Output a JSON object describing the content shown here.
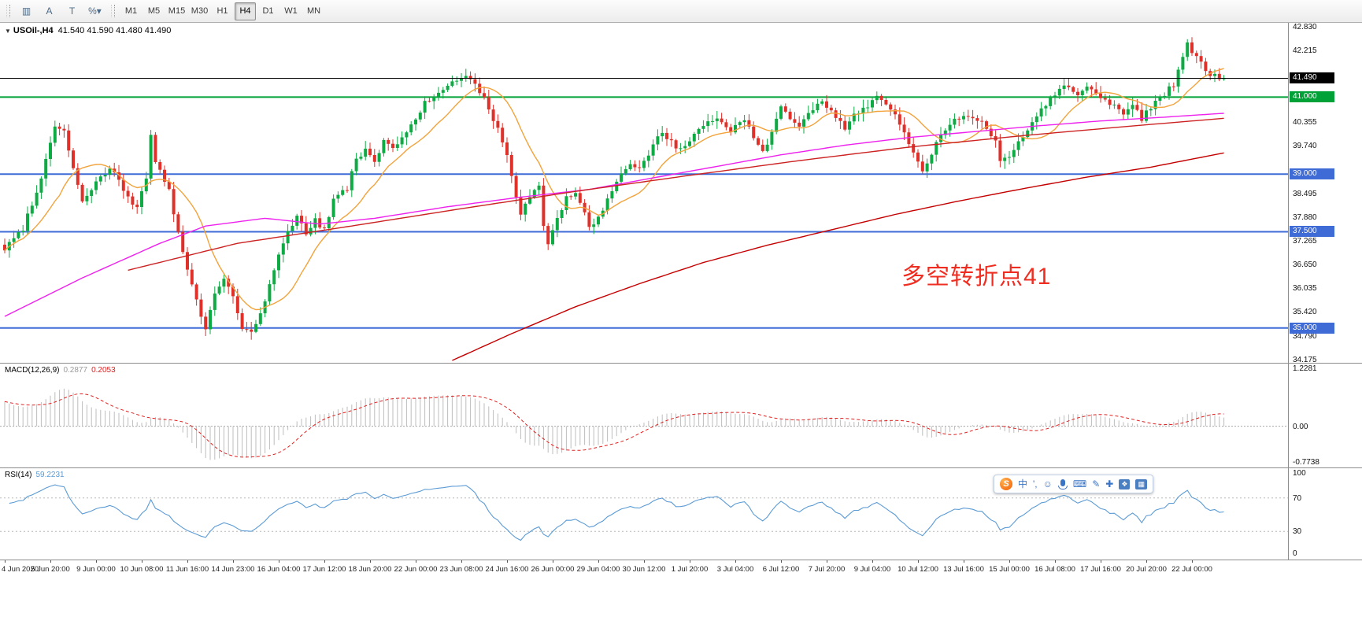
{
  "toolbar": {
    "tools": [
      {
        "name": "chart-style-icon",
        "glyph": "▥"
      },
      {
        "name": "text-label-tool",
        "glyph": "A"
      },
      {
        "name": "template-tool",
        "glyph": "T"
      },
      {
        "name": "scale-dropdown",
        "glyph": "%▾"
      }
    ],
    "timeframes": [
      "M1",
      "M5",
      "M15",
      "M30",
      "H1",
      "H4",
      "D1",
      "W1",
      "MN"
    ],
    "active_timeframe": "H4"
  },
  "chart": {
    "ohlc_label": {
      "collapse_arrow": "▼",
      "symbol": "USOil-,H4",
      "values": "41.540 41.590 41.480 41.490"
    },
    "annotation": {
      "text": "多空转折点41",
      "color": "#ef2d20"
    },
    "price_axis": {
      "max": 42.83,
      "min": 34.175,
      "ticks": [
        "42.830",
        "42.215",
        "40.355",
        "39.740",
        "38.495",
        "37.880",
        "37.265",
        "36.650",
        "36.035",
        "35.420",
        "34.790",
        "34.175"
      ]
    },
    "hlines": [
      {
        "price": 41.49,
        "color": "#000000",
        "width": 1,
        "label": "41.490"
      },
      {
        "price": 41.0,
        "color": "#00a136",
        "width": 2,
        "label": "41.000"
      },
      {
        "price": 39.0,
        "color": "#3f6bd7",
        "width": 2,
        "label": "39.000"
      },
      {
        "price": 37.5,
        "color": "#3f6bd7",
        "width": 2,
        "label": "37.500"
      },
      {
        "price": 35.0,
        "color": "#3f6bd7",
        "width": 2,
        "label": "35.000"
      }
    ]
  },
  "chart_data": {
    "type": "candlestick",
    "symbol": "USOil",
    "period": "H4",
    "bars": 268,
    "last_price": 41.49,
    "colors": {
      "up": "#0eaa44",
      "down": "#e0302a"
    },
    "close_keyframes": [
      [
        0,
        37.05
      ],
      [
        4,
        37.6
      ],
      [
        8,
        38.9
      ],
      [
        11,
        40.3
      ],
      [
        13,
        40.1
      ],
      [
        15,
        39.2
      ],
      [
        17,
        38.25
      ],
      [
        20,
        38.8
      ],
      [
        23,
        39.1
      ],
      [
        25,
        38.85
      ],
      [
        27,
        38.35
      ],
      [
        29,
        38.15
      ],
      [
        31,
        38.9
      ],
      [
        32,
        40.05
      ],
      [
        33,
        39.35
      ],
      [
        36,
        38.55
      ],
      [
        38,
        37.45
      ],
      [
        40,
        36.5
      ],
      [
        42,
        35.7
      ],
      [
        44,
        34.95
      ],
      [
        46,
        35.9
      ],
      [
        48,
        36.35
      ],
      [
        50,
        35.75
      ],
      [
        52,
        35.0
      ],
      [
        54,
        34.85
      ],
      [
        56,
        35.35
      ],
      [
        58,
        36.1
      ],
      [
        61,
        37.25
      ],
      [
        64,
        37.95
      ],
      [
        66,
        37.45
      ],
      [
        68,
        37.8
      ],
      [
        70,
        37.55
      ],
      [
        72,
        38.35
      ],
      [
        75,
        38.65
      ],
      [
        77,
        39.35
      ],
      [
        79,
        39.65
      ],
      [
        81,
        39.25
      ],
      [
        83,
        39.95
      ],
      [
        85,
        39.65
      ],
      [
        87,
        39.9
      ],
      [
        89,
        40.3
      ],
      [
        92,
        40.85
      ],
      [
        95,
        41.05
      ],
      [
        98,
        41.35
      ],
      [
        100,
        41.55
      ],
      [
        102,
        41.45
      ],
      [
        104,
        41.15
      ],
      [
        106,
        40.7
      ],
      [
        108,
        40.2
      ],
      [
        110,
        39.5
      ],
      [
        112,
        38.45
      ],
      [
        113,
        37.95
      ],
      [
        115,
        38.45
      ],
      [
        117,
        38.7
      ],
      [
        118,
        37.6
      ],
      [
        119,
        37.15
      ],
      [
        121,
        37.9
      ],
      [
        123,
        38.35
      ],
      [
        125,
        38.5
      ],
      [
        127,
        37.95
      ],
      [
        128,
        37.6
      ],
      [
        130,
        37.85
      ],
      [
        132,
        38.3
      ],
      [
        135,
        38.95
      ],
      [
        137,
        39.3
      ],
      [
        139,
        39.1
      ],
      [
        142,
        39.75
      ],
      [
        144,
        40.1
      ],
      [
        146,
        39.85
      ],
      [
        148,
        39.6
      ],
      [
        151,
        40.0
      ],
      [
        154,
        40.3
      ],
      [
        156,
        40.5
      ],
      [
        159,
        40.15
      ],
      [
        162,
        40.45
      ],
      [
        164,
        39.95
      ],
      [
        166,
        39.6
      ],
      [
        168,
        40.05
      ],
      [
        170,
        40.8
      ],
      [
        172,
        40.5
      ],
      [
        174,
        40.3
      ],
      [
        177,
        40.65
      ],
      [
        179,
        40.9
      ],
      [
        182,
        40.45
      ],
      [
        184,
        40.2
      ],
      [
        186,
        40.55
      ],
      [
        189,
        40.8
      ],
      [
        191,
        41.0
      ],
      [
        193,
        40.85
      ],
      [
        195,
        40.55
      ],
      [
        197,
        40.05
      ],
      [
        199,
        39.5
      ],
      [
        201,
        39.05
      ],
      [
        203,
        39.5
      ],
      [
        205,
        40.05
      ],
      [
        207,
        40.3
      ],
      [
        210,
        40.5
      ],
      [
        212,
        40.4
      ],
      [
        215,
        40.25
      ],
      [
        217,
        39.85
      ],
      [
        218,
        39.3
      ],
      [
        220,
        39.45
      ],
      [
        222,
        39.85
      ],
      [
        225,
        40.35
      ],
      [
        227,
        40.7
      ],
      [
        230,
        41.1
      ],
      [
        232,
        41.3
      ],
      [
        235,
        41.1
      ],
      [
        237,
        41.25
      ],
      [
        240,
        41.0
      ],
      [
        243,
        40.8
      ],
      [
        245,
        40.6
      ],
      [
        247,
        40.85
      ],
      [
        249,
        40.45
      ],
      [
        252,
        40.9
      ],
      [
        254,
        41.1
      ],
      [
        256,
        41.35
      ],
      [
        258,
        42.0
      ],
      [
        259,
        42.45
      ],
      [
        260,
        42.1
      ],
      [
        261,
        42.05
      ],
      [
        262,
        41.85
      ],
      [
        263,
        41.7
      ],
      [
        264,
        41.6
      ],
      [
        265,
        41.55
      ],
      [
        266,
        41.52
      ],
      [
        267,
        41.49
      ]
    ],
    "ma_lines": [
      {
        "name": "fast-ma",
        "color": "#f2a33c",
        "type": "sma",
        "period": 13
      },
      {
        "name": "mid-ma",
        "color": "#ee22ee",
        "type": "keyframes",
        "points": [
          [
            0,
            35.3
          ],
          [
            17,
            36.3
          ],
          [
            34,
            37.2
          ],
          [
            44,
            37.65
          ],
          [
            57,
            37.85
          ],
          [
            69,
            37.7
          ],
          [
            81,
            37.85
          ],
          [
            97,
            38.15
          ],
          [
            113,
            38.4
          ],
          [
            128,
            38.6
          ],
          [
            142,
            38.9
          ],
          [
            156,
            39.2
          ],
          [
            170,
            39.5
          ],
          [
            184,
            39.75
          ],
          [
            198,
            39.95
          ],
          [
            212,
            40.1
          ],
          [
            226,
            40.25
          ],
          [
            240,
            40.38
          ],
          [
            254,
            40.48
          ],
          [
            267,
            40.58
          ]
        ]
      },
      {
        "name": "slow-ma",
        "color": "#cc2222",
        "type": "keyframes",
        "points": [
          [
            27,
            36.5
          ],
          [
            51,
            37.2
          ],
          [
            76,
            37.65
          ],
          [
            100,
            38.1
          ],
          [
            125,
            38.55
          ],
          [
            149,
            38.95
          ],
          [
            174,
            39.35
          ],
          [
            198,
            39.7
          ],
          [
            223,
            40.0
          ],
          [
            247,
            40.25
          ],
          [
            267,
            40.45
          ]
        ]
      },
      {
        "name": "long-ma",
        "color": "#c40000",
        "type": "keyframes",
        "points": [
          [
            97,
            34.1
          ],
          [
            111,
            34.85
          ],
          [
            125,
            35.55
          ],
          [
            139,
            36.15
          ],
          [
            153,
            36.7
          ],
          [
            167,
            37.15
          ],
          [
            181,
            37.55
          ],
          [
            195,
            37.95
          ],
          [
            209,
            38.3
          ],
          [
            223,
            38.62
          ],
          [
            237,
            38.92
          ],
          [
            251,
            39.18
          ],
          [
            267,
            39.55
          ]
        ]
      }
    ],
    "macd": {
      "title": "MACD(12,26,9)",
      "value": "0.2877",
      "signal_value": "0.2053",
      "axis_max": 1.2281,
      "axis_min": -0.7738,
      "axis_labels": [
        "1.2281",
        "0.00",
        "-0.7738"
      ],
      "hist_color": "#bdbdbd",
      "signal_color": "#e02020"
    },
    "rsi": {
      "title": "RSI(14)",
      "value": "59.2231",
      "line_color": "#5b9bd5",
      "levels": [
        70,
        30
      ],
      "axis_labels": [
        "100",
        "70",
        "30",
        "0"
      ]
    }
  },
  "time_axis": {
    "labels": [
      "4 Jun 2020",
      "5 Jun 20:00",
      "9 Jun 00:00",
      "10 Jun 08:00",
      "11 Jun 16:00",
      "14 Jun 23:00",
      "16 Jun 04:00",
      "17 Jun 12:00",
      "18 Jun 20:00",
      "22 Jun 00:00",
      "23 Jun 08:00",
      "24 Jun 16:00",
      "26 Jun 00:00",
      "29 Jun 04:00",
      "30 Jun 12:00",
      "1 Jul 20:00",
      "3 Jul 04:00",
      "6 Jul 12:00",
      "7 Jul 20:00",
      "9 Jul 04:00",
      "10 Jul 12:00",
      "13 Jul 16:00",
      "15 Jul 00:00",
      "16 Jul 08:00",
      "17 Jul 16:00",
      "20 Jul 20:00",
      "22 Jul 00:00"
    ]
  },
  "ime_bar": {
    "logo": "S",
    "icons": [
      {
        "name": "chinese-mode-icon",
        "glyph": "中"
      },
      {
        "name": "punctuation-icon",
        "glyph": "',"
      },
      {
        "name": "emoji-icon",
        "glyph": "☺"
      },
      {
        "name": "mic-icon",
        "glyph": "MIC"
      },
      {
        "name": "keyboard-icon",
        "glyph": "⌨"
      },
      {
        "name": "handwriting-icon",
        "glyph": "✎"
      },
      {
        "name": "toolbox-icon",
        "glyph": "✚"
      },
      {
        "name": "skin-icon",
        "glyph": "❖"
      },
      {
        "name": "grid-icon",
        "glyph": "▦"
      }
    ]
  }
}
